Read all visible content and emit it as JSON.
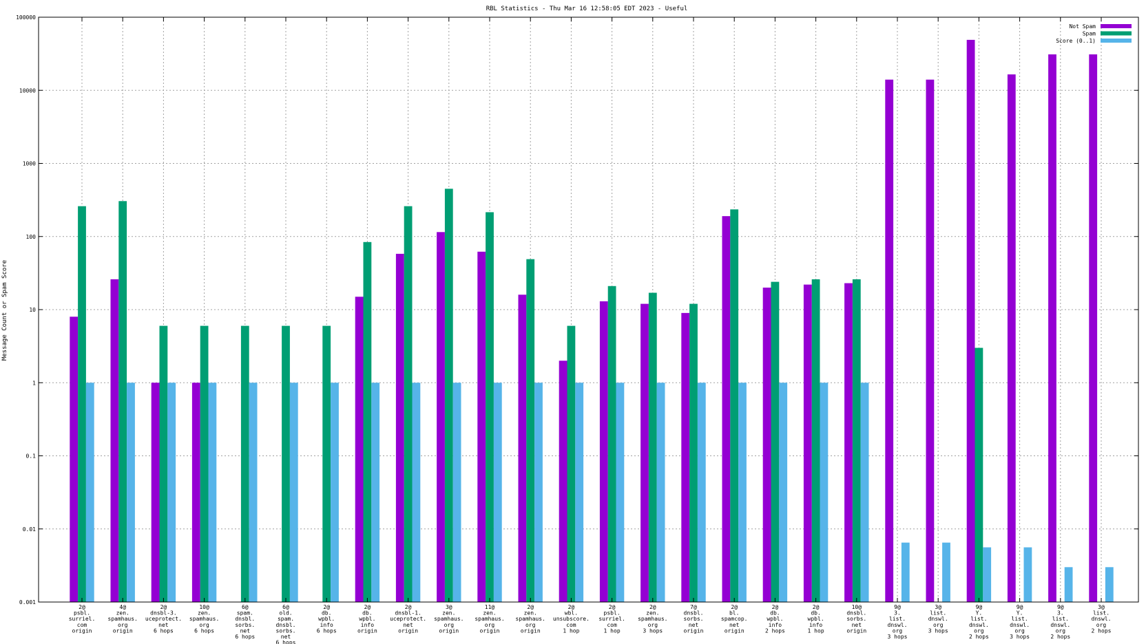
{
  "chart_data": {
    "type": "bar",
    "title": "RBL Statistics - Thu Mar 16 12:58:05 EDT 2023 - Useful",
    "xlabel": "",
    "ylabel": "Message Count or Spam Score",
    "yscale": "log",
    "ylim": [
      0.001,
      100000
    ],
    "y_tick_labels": [
      "0.001",
      "0.01",
      "0.1",
      "1",
      "10",
      "100",
      "1000",
      "10000",
      "100000"
    ],
    "grid": true,
    "legend_position": "top-right",
    "colors": {
      "Not Spam": "#9400d3",
      "Spam": "#009e73",
      "Score (0..1)": "#56b4e9"
    },
    "categories": [
      [
        "2@",
        "psbl.",
        "surriel.",
        "com",
        "origin"
      ],
      [
        "4@",
        "zen.",
        "spamhaus.",
        "org",
        "origin"
      ],
      [
        "2@",
        "dnsbl-3.",
        "uceprotect.",
        "net",
        "6 hops"
      ],
      [
        "10@",
        "zen.",
        "spamhaus.",
        "org",
        "6 hops"
      ],
      [
        "6@",
        "spam.",
        "dnsbl.",
        "sorbs.",
        "net",
        "6 hops"
      ],
      [
        "6@",
        "old.",
        "spam.",
        "dnsbl.",
        "sorbs.",
        "net",
        "6 hops"
      ],
      [
        "2@",
        "db.",
        "wpbl.",
        "info",
        "6 hops"
      ],
      [
        "2@",
        "db.",
        "wpbl.",
        "info",
        "origin"
      ],
      [
        "2@",
        "dnsbl-1.",
        "uceprotect.",
        "net",
        "origin"
      ],
      [
        "3@",
        "zen.",
        "spamhaus.",
        "org",
        "origin"
      ],
      [
        "11@",
        "zen.",
        "spamhaus.",
        "org",
        "origin"
      ],
      [
        "2@",
        "zen.",
        "spamhaus.",
        "org",
        "origin"
      ],
      [
        "2@",
        "wbl.",
        "unsubscore.",
        "com",
        "1 hop"
      ],
      [
        "2@",
        "psbl.",
        "surriel.",
        "com",
        "1 hop"
      ],
      [
        "2@",
        "zen.",
        "spamhaus.",
        "org",
        "3 hops"
      ],
      [
        "7@",
        "dnsbl.",
        "sorbs.",
        "net",
        "origin"
      ],
      [
        "2@",
        "bl.",
        "spamcop.",
        "net",
        "origin"
      ],
      [
        "2@",
        "db.",
        "wpbl.",
        "info",
        "2 hops"
      ],
      [
        "2@",
        "db.",
        "wpbl.",
        "info",
        "1 hop"
      ],
      [
        "10@",
        "dnsbl.",
        "sorbs.",
        "net",
        "origin"
      ],
      [
        "9@",
        "3.",
        "list.",
        "dnswl.",
        "org",
        "3 hops"
      ],
      [
        "3@",
        "list.",
        "dnswl.",
        "org",
        "3 hops"
      ],
      [
        "9@",
        "Y.",
        "list.",
        "dnswl.",
        "org",
        "2 hops"
      ],
      [
        "9@",
        "Y.",
        "list.",
        "dnswl.",
        "org",
        "3 hops"
      ],
      [
        "9@",
        "3.",
        "list.",
        "dnswl.",
        "org",
        "2 hops"
      ],
      [
        "3@",
        "list.",
        "dnswl.",
        "org",
        "2 hops"
      ]
    ],
    "series": [
      {
        "name": "Not Spam",
        "values": [
          8,
          26,
          1,
          1,
          null,
          null,
          null,
          15,
          58,
          115,
          62,
          16,
          2,
          13,
          12,
          9,
          190,
          20,
          22,
          23,
          14000,
          14000,
          49000,
          16500,
          31000,
          31000
        ]
      },
      {
        "name": "Spam",
        "values": [
          260,
          305,
          6,
          6,
          6,
          6,
          6,
          84,
          260,
          450,
          215,
          49,
          6,
          21,
          17,
          12,
          235,
          24,
          26,
          26,
          null,
          null,
          3,
          null,
          null,
          null
        ]
      },
      {
        "name": "Score (0..1)",
        "values": [
          1,
          1,
          1,
          1,
          1,
          1,
          1,
          1,
          1,
          1,
          1,
          1,
          1,
          1,
          1,
          1,
          1,
          1,
          1,
          1,
          0.0065,
          0.0065,
          0.0056,
          0.0056,
          0.003,
          0.003
        ]
      }
    ]
  }
}
